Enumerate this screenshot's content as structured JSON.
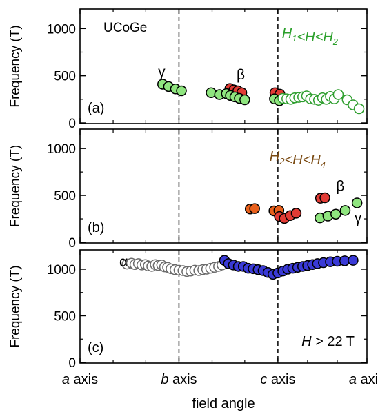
{
  "chart_data": [
    {
      "type": "scatter",
      "panel_label": "(a)",
      "material_label": "UCoGe",
      "condition": {
        "parts": [
          {
            "t": "H",
            "s": "1",
            "i": true
          },
          {
            "t": "<",
            "i": true
          },
          {
            "t": "H",
            "i": true
          },
          {
            "t": "<",
            "i": true
          },
          {
            "t": "H",
            "s": "2",
            "i": true
          }
        ],
        "color": "#2ca02c"
      },
      "ylabel": "Frequency (T)",
      "ylim": [
        0,
        1200
      ],
      "yticks": [
        "0",
        "500",
        "1000"
      ],
      "branch_labels": [
        {
          "text": "γ",
          "x": 0.65,
          "y": 490
        },
        {
          "text": "β",
          "x": 2.25,
          "y": 460
        }
      ],
      "series": [
        {
          "fill": "#e23b35",
          "stroke": "#000000",
          "x": [
            2.03,
            2.11,
            2.19,
            2.27,
            2.94,
            3.04
          ],
          "y": [
            365,
            350,
            340,
            320,
            320,
            305
          ]
        },
        {
          "fill": "#8fe57f",
          "stroke": "#000000",
          "x": [
            0.67,
            0.79,
            0.93,
            1.05,
            1.65,
            1.82,
            1.96,
            2.04,
            2.13,
            2.22,
            2.33,
            2.93,
            3.03
          ],
          "y": [
            410,
            385,
            360,
            340,
            320,
            300,
            310,
            290,
            275,
            260,
            245,
            255,
            235
          ]
        },
        {
          "fill": "#ffffff",
          "stroke": "#2e9e2e",
          "x": [
            3.1,
            3.18,
            3.26,
            3.34,
            3.42,
            3.5,
            3.58,
            3.66,
            3.74,
            3.82,
            3.9,
            3.98,
            4.06,
            4.14,
            4.22,
            4.4,
            4.52,
            4.64
          ],
          "y": [
            260,
            255,
            250,
            265,
            270,
            275,
            285,
            255,
            250,
            240,
            265,
            250,
            280,
            255,
            300,
            245,
            190,
            150
          ]
        }
      ]
    },
    {
      "type": "scatter",
      "panel_label": "(b)",
      "condition": {
        "parts": [
          {
            "t": "H",
            "s": "2",
            "i": true
          },
          {
            "t": "<",
            "i": true
          },
          {
            "t": "H",
            "i": true
          },
          {
            "t": "<",
            "i": true
          },
          {
            "t": "H",
            "s": "4",
            "i": true
          }
        ],
        "color": "#7a4a12"
      },
      "ylabel": "Frequency (T)",
      "ylim": [
        0,
        1200
      ],
      "yticks": [
        "0",
        "500",
        "1000"
      ],
      "branch_labels": [
        {
          "text": "β",
          "x": 4.26,
          "y": 550
        },
        {
          "text": "γ",
          "x": 4.62,
          "y": 210
        }
      ],
      "series": [
        {
          "fill": "#e8601c",
          "stroke": "#000000",
          "x": [
            2.44,
            2.53,
            2.92,
            3.02
          ],
          "y": [
            355,
            360,
            335,
            340
          ]
        },
        {
          "fill": "#e23b35",
          "stroke": "#000000",
          "x": [
            3.03,
            3.13,
            3.25,
            3.37,
            3.86,
            3.95
          ],
          "y": [
            275,
            255,
            285,
            310,
            470,
            475
          ]
        },
        {
          "fill": "#8fe57f",
          "stroke": "#000000",
          "x": [
            3.85,
            4.01,
            4.17,
            4.36,
            4.6
          ],
          "y": [
            260,
            280,
            300,
            340,
            420
          ]
        }
      ]
    },
    {
      "type": "scatter",
      "panel_label": "(c)",
      "condition": {
        "parts": [
          {
            "t": "H",
            "i": true
          },
          {
            "t": " > 22 T",
            "i": false
          }
        ],
        "color": "#000000"
      },
      "ylabel": "Frequency (T)",
      "ylim": [
        0,
        1200
      ],
      "yticks": [
        "0",
        "500",
        "1000"
      ],
      "branch_labels": [
        {
          "text": "α",
          "x": -0.12,
          "y": 1030
        }
      ],
      "xlabel": "field angle",
      "xticks": [
        "a axis",
        "b axis",
        "c axis",
        "a axis"
      ],
      "series": [
        {
          "fill": "#ffffff",
          "stroke": "#6a6a6a",
          "x": [
            -0.05,
            0.04,
            0.11,
            0.18,
            0.25,
            0.32,
            0.38,
            0.45,
            0.52,
            0.58,
            0.65,
            0.71,
            0.77,
            0.84,
            0.92,
            1.0,
            1.08,
            1.16,
            1.24,
            1.32,
            1.4,
            1.48,
            1.56,
            1.64,
            1.72,
            1.8,
            1.87
          ],
          "y": [
            1055,
            1065,
            1050,
            1060,
            1045,
            1050,
            1035,
            1030,
            1050,
            1040,
            1045,
            1025,
            1020,
            1005,
            995,
            990,
            985,
            975,
            980,
            990,
            985,
            995,
            1000,
            1010,
            1020,
            1030,
            1045
          ]
        },
        {
          "fill": "#3a3ad6",
          "stroke": "#000000",
          "x": [
            1.92,
            2.0,
            2.1,
            2.2,
            2.3,
            2.4,
            2.5,
            2.6,
            2.7,
            2.8,
            2.9,
            3.0,
            3.1,
            3.2,
            3.3,
            3.4,
            3.5,
            3.6,
            3.7,
            3.8,
            3.92,
            4.06,
            4.2,
            4.35,
            4.52
          ],
          "y": [
            1095,
            1060,
            1045,
            1030,
            1030,
            1010,
            1005,
            995,
            985,
            965,
            945,
            960,
            980,
            1000,
            1010,
            1020,
            1030,
            1040,
            1050,
            1060,
            1070,
            1080,
            1085,
            1090,
            1095
          ]
        }
      ]
    }
  ]
}
